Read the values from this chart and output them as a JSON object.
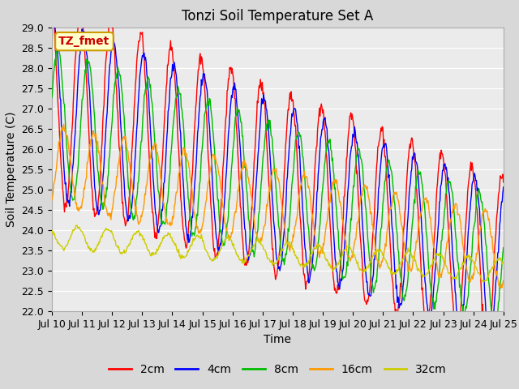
{
  "title": "Tonzi Soil Temperature Set A",
  "xlabel": "Time",
  "ylabel": "Soil Temperature (C)",
  "ylim": [
    22.0,
    29.0
  ],
  "yticks": [
    22.0,
    22.5,
    23.0,
    23.5,
    24.0,
    24.5,
    25.0,
    25.5,
    26.0,
    26.5,
    27.0,
    27.5,
    28.0,
    28.5,
    29.0
  ],
  "xtick_labels": [
    "Jul 10",
    "Jul 11",
    "Jul 12",
    "Jul 13",
    "Jul 14",
    "Jul 15",
    "Jul 16",
    "Jul 17",
    "Jul 18",
    "Jul 19",
    "Jul 20",
    "Jul 21",
    "Jul 22",
    "Jul 23",
    "Jul 24",
    "Jul 25"
  ],
  "series_colors": [
    "#ff0000",
    "#0000ff",
    "#00bb00",
    "#ff9900",
    "#cccc00"
  ],
  "series_labels": [
    "2cm",
    "4cm",
    "8cm",
    "16cm",
    "32cm"
  ],
  "annotation_text": "TZ_fmet",
  "annotation_color": "#cc0000",
  "annotation_bg": "#ffffcc",
  "annotation_border": "#cc9900",
  "fig_bg_color": "#d8d8d8",
  "plot_bg_color": "#ebebeb",
  "grid_color": "#ffffff",
  "title_fontsize": 12,
  "axis_label_fontsize": 10,
  "tick_fontsize": 9,
  "legend_fontsize": 10,
  "n_days": 15,
  "pts_per_day": 48
}
